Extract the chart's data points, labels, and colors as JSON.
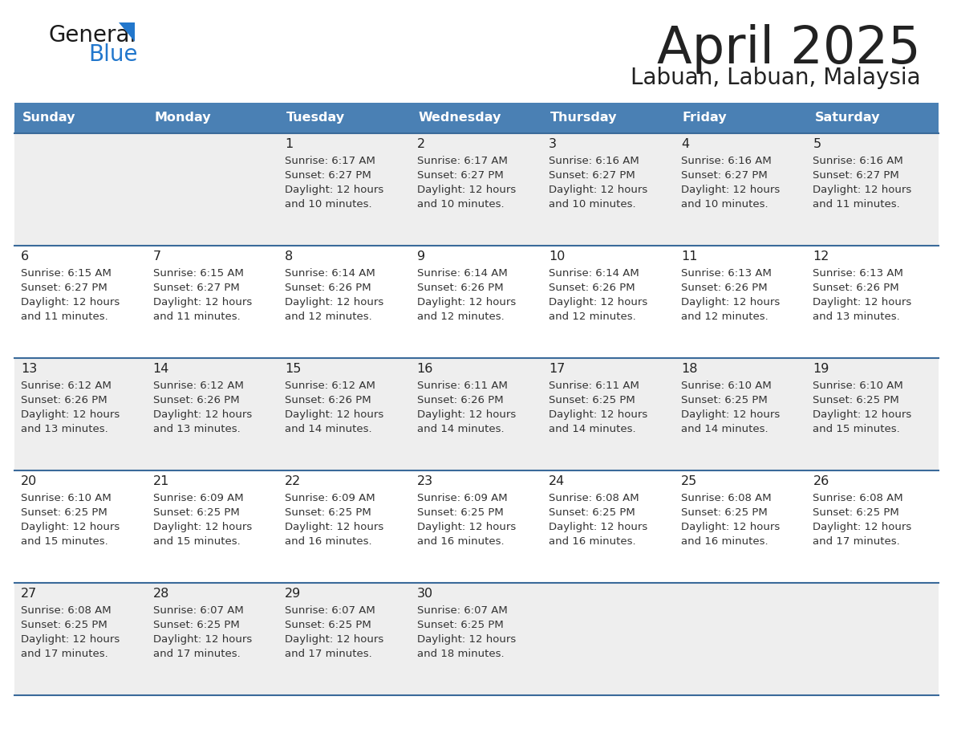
{
  "title": "April 2025",
  "subtitle": "Labuan, Labuan, Malaysia",
  "header_bg": "#4a80b4",
  "header_text_color": "#ffffff",
  "row_bg_odd": "#eeeeee",
  "row_bg_even": "#ffffff",
  "border_color": "#3a6a9a",
  "text_dark": "#222222",
  "text_body": "#333333",
  "logo_black": "#1a1a1a",
  "logo_blue": "#2277cc",
  "triangle_blue": "#2277cc",
  "day_names": [
    "Sunday",
    "Monday",
    "Tuesday",
    "Wednesday",
    "Thursday",
    "Friday",
    "Saturday"
  ],
  "weeks": [
    [
      {
        "day": "",
        "lines": []
      },
      {
        "day": "",
        "lines": []
      },
      {
        "day": "1",
        "lines": [
          "Sunrise: 6:17 AM",
          "Sunset: 6:27 PM",
          "Daylight: 12 hours",
          "and 10 minutes."
        ]
      },
      {
        "day": "2",
        "lines": [
          "Sunrise: 6:17 AM",
          "Sunset: 6:27 PM",
          "Daylight: 12 hours",
          "and 10 minutes."
        ]
      },
      {
        "day": "3",
        "lines": [
          "Sunrise: 6:16 AM",
          "Sunset: 6:27 PM",
          "Daylight: 12 hours",
          "and 10 minutes."
        ]
      },
      {
        "day": "4",
        "lines": [
          "Sunrise: 6:16 AM",
          "Sunset: 6:27 PM",
          "Daylight: 12 hours",
          "and 10 minutes."
        ]
      },
      {
        "day": "5",
        "lines": [
          "Sunrise: 6:16 AM",
          "Sunset: 6:27 PM",
          "Daylight: 12 hours",
          "and 11 minutes."
        ]
      }
    ],
    [
      {
        "day": "6",
        "lines": [
          "Sunrise: 6:15 AM",
          "Sunset: 6:27 PM",
          "Daylight: 12 hours",
          "and 11 minutes."
        ]
      },
      {
        "day": "7",
        "lines": [
          "Sunrise: 6:15 AM",
          "Sunset: 6:27 PM",
          "Daylight: 12 hours",
          "and 11 minutes."
        ]
      },
      {
        "day": "8",
        "lines": [
          "Sunrise: 6:14 AM",
          "Sunset: 6:26 PM",
          "Daylight: 12 hours",
          "and 12 minutes."
        ]
      },
      {
        "day": "9",
        "lines": [
          "Sunrise: 6:14 AM",
          "Sunset: 6:26 PM",
          "Daylight: 12 hours",
          "and 12 minutes."
        ]
      },
      {
        "day": "10",
        "lines": [
          "Sunrise: 6:14 AM",
          "Sunset: 6:26 PM",
          "Daylight: 12 hours",
          "and 12 minutes."
        ]
      },
      {
        "day": "11",
        "lines": [
          "Sunrise: 6:13 AM",
          "Sunset: 6:26 PM",
          "Daylight: 12 hours",
          "and 12 minutes."
        ]
      },
      {
        "day": "12",
        "lines": [
          "Sunrise: 6:13 AM",
          "Sunset: 6:26 PM",
          "Daylight: 12 hours",
          "and 13 minutes."
        ]
      }
    ],
    [
      {
        "day": "13",
        "lines": [
          "Sunrise: 6:12 AM",
          "Sunset: 6:26 PM",
          "Daylight: 12 hours",
          "and 13 minutes."
        ]
      },
      {
        "day": "14",
        "lines": [
          "Sunrise: 6:12 AM",
          "Sunset: 6:26 PM",
          "Daylight: 12 hours",
          "and 13 minutes."
        ]
      },
      {
        "day": "15",
        "lines": [
          "Sunrise: 6:12 AM",
          "Sunset: 6:26 PM",
          "Daylight: 12 hours",
          "and 14 minutes."
        ]
      },
      {
        "day": "16",
        "lines": [
          "Sunrise: 6:11 AM",
          "Sunset: 6:26 PM",
          "Daylight: 12 hours",
          "and 14 minutes."
        ]
      },
      {
        "day": "17",
        "lines": [
          "Sunrise: 6:11 AM",
          "Sunset: 6:25 PM",
          "Daylight: 12 hours",
          "and 14 minutes."
        ]
      },
      {
        "day": "18",
        "lines": [
          "Sunrise: 6:10 AM",
          "Sunset: 6:25 PM",
          "Daylight: 12 hours",
          "and 14 minutes."
        ]
      },
      {
        "day": "19",
        "lines": [
          "Sunrise: 6:10 AM",
          "Sunset: 6:25 PM",
          "Daylight: 12 hours",
          "and 15 minutes."
        ]
      }
    ],
    [
      {
        "day": "20",
        "lines": [
          "Sunrise: 6:10 AM",
          "Sunset: 6:25 PM",
          "Daylight: 12 hours",
          "and 15 minutes."
        ]
      },
      {
        "day": "21",
        "lines": [
          "Sunrise: 6:09 AM",
          "Sunset: 6:25 PM",
          "Daylight: 12 hours",
          "and 15 minutes."
        ]
      },
      {
        "day": "22",
        "lines": [
          "Sunrise: 6:09 AM",
          "Sunset: 6:25 PM",
          "Daylight: 12 hours",
          "and 16 minutes."
        ]
      },
      {
        "day": "23",
        "lines": [
          "Sunrise: 6:09 AM",
          "Sunset: 6:25 PM",
          "Daylight: 12 hours",
          "and 16 minutes."
        ]
      },
      {
        "day": "24",
        "lines": [
          "Sunrise: 6:08 AM",
          "Sunset: 6:25 PM",
          "Daylight: 12 hours",
          "and 16 minutes."
        ]
      },
      {
        "day": "25",
        "lines": [
          "Sunrise: 6:08 AM",
          "Sunset: 6:25 PM",
          "Daylight: 12 hours",
          "and 16 minutes."
        ]
      },
      {
        "day": "26",
        "lines": [
          "Sunrise: 6:08 AM",
          "Sunset: 6:25 PM",
          "Daylight: 12 hours",
          "and 17 minutes."
        ]
      }
    ],
    [
      {
        "day": "27",
        "lines": [
          "Sunrise: 6:08 AM",
          "Sunset: 6:25 PM",
          "Daylight: 12 hours",
          "and 17 minutes."
        ]
      },
      {
        "day": "28",
        "lines": [
          "Sunrise: 6:07 AM",
          "Sunset: 6:25 PM",
          "Daylight: 12 hours",
          "and 17 minutes."
        ]
      },
      {
        "day": "29",
        "lines": [
          "Sunrise: 6:07 AM",
          "Sunset: 6:25 PM",
          "Daylight: 12 hours",
          "and 17 minutes."
        ]
      },
      {
        "day": "30",
        "lines": [
          "Sunrise: 6:07 AM",
          "Sunset: 6:25 PM",
          "Daylight: 12 hours",
          "and 18 minutes."
        ]
      },
      {
        "day": "",
        "lines": []
      },
      {
        "day": "",
        "lines": []
      },
      {
        "day": "",
        "lines": []
      }
    ]
  ]
}
